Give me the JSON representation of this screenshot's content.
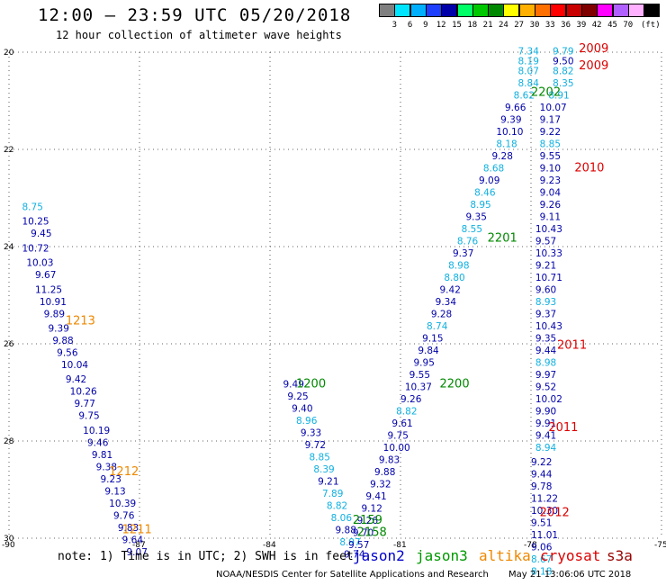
{
  "header": {
    "title": "12:00 – 23:59 UTC 05/20/2018",
    "subtitle": "12 hour collection of altimeter wave heights"
  },
  "color_scale": {
    "unit": "(ft)",
    "colors": [
      "#7f7f7f",
      "#00e5ff",
      "#00b0ff",
      "#1f3fff",
      "#0000a8",
      "#00ff66",
      "#00c800",
      "#008800",
      "#ffff00",
      "#ffb000",
      "#ff7000",
      "#ff0000",
      "#c80000",
      "#800000",
      "#ff00ff",
      "#b060ff",
      "#ffb0ff",
      "#000000"
    ],
    "labels": [
      "3",
      "6",
      "9",
      "12",
      "15",
      "18",
      "21",
      "24",
      "27",
      "30",
      "33",
      "36",
      "39",
      "42",
      "45",
      "70"
    ]
  },
  "axes": {
    "lat_labels": [
      "20",
      "22",
      "24",
      "26",
      "28",
      "30"
    ],
    "lon_labels": [
      "-90",
      "-87",
      "-84",
      "-81",
      "-78",
      "-75"
    ]
  },
  "map": {
    "lon_range": [
      -90,
      -75
    ],
    "lat_range": [
      20,
      30
    ],
    "colors": {
      "jason2": "#0000aa",
      "jason2_light": "#10b0e0",
      "jason3": "#008800",
      "altika": "#ee8800",
      "cryosat": "#dd0000"
    },
    "pass_labels": [
      {
        "text": "1213",
        "sat": "altika",
        "lon": -88.7,
        "lat": 25.6
      },
      {
        "text": "1212",
        "sat": "altika",
        "lon": -87.7,
        "lat": 28.7
      },
      {
        "text": "1211",
        "sat": "altika",
        "lon": -87.4,
        "lat": 29.9
      },
      {
        "text": "1200",
        "sat": "jason3",
        "lon": -83.4,
        "lat": 26.9
      },
      {
        "text": "2200",
        "sat": "jason3",
        "lon": -80.1,
        "lat": 26.9
      },
      {
        "text": "2201",
        "sat": "jason3",
        "lon": -79.0,
        "lat": 23.9
      },
      {
        "text": "2202",
        "sat": "jason3",
        "lon": -78.0,
        "lat": 20.9
      },
      {
        "text": "2159",
        "sat": "jason3",
        "lon": -82.1,
        "lat": 29.7
      },
      {
        "text": "2158",
        "sat": "jason3",
        "lon": -82.0,
        "lat": 29.95
      },
      {
        "text": "2009",
        "sat": "cryosat",
        "lon": -76.9,
        "lat": 20.0
      },
      {
        "text": "2009",
        "sat": "cryosat",
        "lon": -76.9,
        "lat": 20.35
      },
      {
        "text": "2010",
        "sat": "cryosat",
        "lon": -77.0,
        "lat": 22.45
      },
      {
        "text": "2011",
        "sat": "cryosat",
        "lon": -77.4,
        "lat": 26.1
      },
      {
        "text": "2011",
        "sat": "cryosat",
        "lon": -77.6,
        "lat": 27.8
      },
      {
        "text": "2012",
        "sat": "cryosat",
        "lon": -77.8,
        "lat": 29.55
      }
    ],
    "tracks": [
      {
        "name": "altika-west",
        "values": [
          {
            "v": "8.75",
            "lon": -89.7,
            "lat": 23.25,
            "c": "l"
          },
          {
            "v": "10.25",
            "lon": -89.7,
            "lat": 23.55,
            "c": "d"
          },
          {
            "v": "9.45",
            "lon": -89.5,
            "lat": 23.8,
            "c": "d"
          },
          {
            "v": "10.72",
            "lon": -89.7,
            "lat": 24.1,
            "c": "d"
          },
          {
            "v": "10.03",
            "lon": -89.6,
            "lat": 24.4,
            "c": "d"
          },
          {
            "v": "9.67",
            "lon": -89.4,
            "lat": 24.65,
            "c": "d"
          },
          {
            "v": "11.25",
            "lon": -89.4,
            "lat": 24.95,
            "c": "d"
          },
          {
            "v": "10.91",
            "lon": -89.3,
            "lat": 25.2,
            "c": "d"
          },
          {
            "v": "9.89",
            "lon": -89.2,
            "lat": 25.45,
            "c": "d"
          },
          {
            "v": "9.39",
            "lon": -89.1,
            "lat": 25.75,
            "c": "d"
          },
          {
            "v": "9.88",
            "lon": -89.0,
            "lat": 26.0,
            "c": "d"
          },
          {
            "v": "9.56",
            "lon": -88.9,
            "lat": 26.25,
            "c": "d"
          },
          {
            "v": "10.04",
            "lon": -88.8,
            "lat": 26.5,
            "c": "d"
          },
          {
            "v": "9.42",
            "lon": -88.7,
            "lat": 26.8,
            "c": "d"
          },
          {
            "v": "10.26",
            "lon": -88.6,
            "lat": 27.05,
            "c": "d"
          },
          {
            "v": "9.77",
            "lon": -88.5,
            "lat": 27.3,
            "c": "d"
          },
          {
            "v": "9.75",
            "lon": -88.4,
            "lat": 27.55,
            "c": "d"
          },
          {
            "v": "10.19",
            "lon": -88.3,
            "lat": 27.85,
            "c": "d"
          },
          {
            "v": "9.46",
            "lon": -88.2,
            "lat": 28.1,
            "c": "d"
          },
          {
            "v": "9.81",
            "lon": -88.1,
            "lat": 28.35,
            "c": "d"
          },
          {
            "v": "9.38",
            "lon": -88.0,
            "lat": 28.6,
            "c": "d"
          },
          {
            "v": "9.23",
            "lon": -87.9,
            "lat": 28.85,
            "c": "d"
          },
          {
            "v": "9.13",
            "lon": -87.8,
            "lat": 29.1,
            "c": "d"
          },
          {
            "v": "10.39",
            "lon": -87.7,
            "lat": 29.35,
            "c": "d"
          },
          {
            "v": "9.76",
            "lon": -87.6,
            "lat": 29.6,
            "c": "d"
          },
          {
            "v": "9.83",
            "lon": -87.5,
            "lat": 29.85,
            "c": "d"
          },
          {
            "v": "9.64",
            "lon": -87.4,
            "lat": 30.1,
            "c": "d"
          },
          {
            "v": "9.07",
            "lon": -87.3,
            "lat": 30.35,
            "c": "d"
          }
        ]
      },
      {
        "name": "jason-center-left",
        "values": [
          {
            "v": "9.49",
            "lon": -83.7,
            "lat": 26.9,
            "c": "d"
          },
          {
            "v": "9.25",
            "lon": -83.6,
            "lat": 27.15,
            "c": "d"
          },
          {
            "v": "9.40",
            "lon": -83.5,
            "lat": 27.4,
            "c": "d"
          },
          {
            "v": "8.96",
            "lon": -83.4,
            "lat": 27.65,
            "c": "l"
          },
          {
            "v": "9.33",
            "lon": -83.3,
            "lat": 27.9,
            "c": "d"
          },
          {
            "v": "9.72",
            "lon": -83.2,
            "lat": 28.15,
            "c": "d"
          },
          {
            "v": "8.85",
            "lon": -83.1,
            "lat": 28.4,
            "c": "l"
          },
          {
            "v": "8.39",
            "lon": -83.0,
            "lat": 28.65,
            "c": "l"
          },
          {
            "v": "9.21",
            "lon": -82.9,
            "lat": 28.9,
            "c": "d"
          },
          {
            "v": "7.89",
            "lon": -82.8,
            "lat": 29.15,
            "c": "l"
          },
          {
            "v": "8.82",
            "lon": -82.7,
            "lat": 29.4,
            "c": "l"
          },
          {
            "v": "8.06",
            "lon": -82.6,
            "lat": 29.65,
            "c": "l"
          },
          {
            "v": "9.88",
            "lon": -82.5,
            "lat": 29.9,
            "c": "d"
          },
          {
            "v": "8.97",
            "lon": -82.4,
            "lat": 30.15,
            "c": "l"
          },
          {
            "v": "9.74",
            "lon": -82.3,
            "lat": 30.4,
            "c": "d"
          }
        ]
      },
      {
        "name": "jason-diagonal",
        "values": [
          {
            "v": "7.34",
            "lon": -78.3,
            "lat": 20.05,
            "c": "l"
          },
          {
            "v": "8.19",
            "lon": -78.3,
            "lat": 20.25,
            "c": "l"
          },
          {
            "v": "8.07",
            "lon": -78.3,
            "lat": 20.45,
            "c": "l"
          },
          {
            "v": "8.84",
            "lon": -78.3,
            "lat": 20.7,
            "c": "l"
          },
          {
            "v": "8.62",
            "lon": -78.4,
            "lat": 20.95,
            "c": "l"
          },
          {
            "v": "9.66",
            "lon": -78.6,
            "lat": 21.2,
            "c": "d"
          },
          {
            "v": "9.39",
            "lon": -78.7,
            "lat": 21.45,
            "c": "d"
          },
          {
            "v": "10.10",
            "lon": -78.8,
            "lat": 21.7,
            "c": "d"
          },
          {
            "v": "8.18",
            "lon": -78.8,
            "lat": 21.95,
            "c": "l"
          },
          {
            "v": "9.28",
            "lon": -78.9,
            "lat": 22.2,
            "c": "d"
          },
          {
            "v": "8.68",
            "lon": -79.1,
            "lat": 22.45,
            "c": "l"
          },
          {
            "v": "9.09",
            "lon": -79.2,
            "lat": 22.7,
            "c": "d"
          },
          {
            "v": "8.46",
            "lon": -79.3,
            "lat": 22.95,
            "c": "l"
          },
          {
            "v": "8.95",
            "lon": -79.4,
            "lat": 23.2,
            "c": "l"
          },
          {
            "v": "9.35",
            "lon": -79.5,
            "lat": 23.45,
            "c": "d"
          },
          {
            "v": "8.55",
            "lon": -79.6,
            "lat": 23.7,
            "c": "l"
          },
          {
            "v": "8.76",
            "lon": -79.7,
            "lat": 23.95,
            "c": "l"
          },
          {
            "v": "9.37",
            "lon": -79.8,
            "lat": 24.2,
            "c": "d"
          },
          {
            "v": "8.98",
            "lon": -79.9,
            "lat": 24.45,
            "c": "l"
          },
          {
            "v": "8.80",
            "lon": -80.0,
            "lat": 24.7,
            "c": "l"
          },
          {
            "v": "9.42",
            "lon": -80.1,
            "lat": 24.95,
            "c": "d"
          },
          {
            "v": "9.34",
            "lon": -80.2,
            "lat": 25.2,
            "c": "d"
          },
          {
            "v": "9.28",
            "lon": -80.3,
            "lat": 25.45,
            "c": "d"
          },
          {
            "v": "8.74",
            "lon": -80.4,
            "lat": 25.7,
            "c": "l"
          },
          {
            "v": "9.15",
            "lon": -80.5,
            "lat": 25.95,
            "c": "d"
          },
          {
            "v": "9.84",
            "lon": -80.6,
            "lat": 26.2,
            "c": "d"
          },
          {
            "v": "9.95",
            "lon": -80.7,
            "lat": 26.45,
            "c": "d"
          },
          {
            "v": "9.55",
            "lon": -80.8,
            "lat": 26.7,
            "c": "d"
          },
          {
            "v": "10.37",
            "lon": -80.9,
            "lat": 26.95,
            "c": "d"
          },
          {
            "v": "9.26",
            "lon": -81.0,
            "lat": 27.2,
            "c": "d"
          },
          {
            "v": "8.82",
            "lon": -81.1,
            "lat": 27.45,
            "c": "l"
          },
          {
            "v": "9.61",
            "lon": -81.2,
            "lat": 27.7,
            "c": "d"
          },
          {
            "v": "9.75",
            "lon": -81.3,
            "lat": 27.95,
            "c": "d"
          },
          {
            "v": "10.00",
            "lon": -81.4,
            "lat": 28.2,
            "c": "d"
          },
          {
            "v": "9.83",
            "lon": -81.5,
            "lat": 28.45,
            "c": "d"
          },
          {
            "v": "9.88",
            "lon": -81.6,
            "lat": 28.7,
            "c": "d"
          },
          {
            "v": "9.32",
            "lon": -81.7,
            "lat": 28.95,
            "c": "d"
          },
          {
            "v": "9.41",
            "lon": -81.8,
            "lat": 29.2,
            "c": "d"
          },
          {
            "v": "9.12",
            "lon": -81.9,
            "lat": 29.45,
            "c": "d"
          },
          {
            "v": "9.26",
            "lon": -82.0,
            "lat": 29.7,
            "c": "d"
          },
          {
            "v": "9.70",
            "lon": -82.1,
            "lat": 29.95,
            "c": "d"
          },
          {
            "v": "9.57",
            "lon": -82.2,
            "lat": 30.2,
            "c": "d"
          }
        ]
      },
      {
        "name": "cryosat-column",
        "values": [
          {
            "v": "9.79",
            "lon": -77.5,
            "lat": 20.05,
            "c": "l"
          },
          {
            "v": "9.50",
            "lon": -77.5,
            "lat": 20.25,
            "c": "d"
          },
          {
            "v": "8.82",
            "lon": -77.5,
            "lat": 20.45,
            "c": "l"
          },
          {
            "v": "8.35",
            "lon": -77.5,
            "lat": 20.7,
            "c": "l"
          },
          {
            "v": "8.91",
            "lon": -77.6,
            "lat": 20.95,
            "c": "l"
          },
          {
            "v": "10.07",
            "lon": -77.8,
            "lat": 21.2,
            "c": "d"
          },
          {
            "v": "9.17",
            "lon": -77.8,
            "lat": 21.45,
            "c": "d"
          },
          {
            "v": "9.22",
            "lon": -77.8,
            "lat": 21.7,
            "c": "d"
          },
          {
            "v": "8.85",
            "lon": -77.8,
            "lat": 21.95,
            "c": "l"
          },
          {
            "v": "9.55",
            "lon": -77.8,
            "lat": 22.2,
            "c": "d"
          },
          {
            "v": "9.10",
            "lon": -77.8,
            "lat": 22.45,
            "c": "d"
          },
          {
            "v": "9.23",
            "lon": -77.8,
            "lat": 22.7,
            "c": "d"
          },
          {
            "v": "9.04",
            "lon": -77.8,
            "lat": 22.95,
            "c": "d"
          },
          {
            "v": "9.26",
            "lon": -77.8,
            "lat": 23.2,
            "c": "d"
          },
          {
            "v": "9.11",
            "lon": -77.8,
            "lat": 23.45,
            "c": "d"
          },
          {
            "v": "10.43",
            "lon": -77.9,
            "lat": 23.7,
            "c": "d"
          },
          {
            "v": "9.57",
            "lon": -77.9,
            "lat": 23.95,
            "c": "d"
          },
          {
            "v": "10.33",
            "lon": -77.9,
            "lat": 24.2,
            "c": "d"
          },
          {
            "v": "9.21",
            "lon": -77.9,
            "lat": 24.45,
            "c": "d"
          },
          {
            "v": "10.71",
            "lon": -77.9,
            "lat": 24.7,
            "c": "d"
          },
          {
            "v": "9.60",
            "lon": -77.9,
            "lat": 24.95,
            "c": "d"
          },
          {
            "v": "8.93",
            "lon": -77.9,
            "lat": 25.2,
            "c": "l"
          },
          {
            "v": "9.37",
            "lon": -77.9,
            "lat": 25.45,
            "c": "d"
          },
          {
            "v": "10.43",
            "lon": -77.9,
            "lat": 25.7,
            "c": "d"
          },
          {
            "v": "9.35",
            "lon": -77.9,
            "lat": 25.95,
            "c": "d"
          },
          {
            "v": "9.44",
            "lon": -77.9,
            "lat": 26.2,
            "c": "d"
          },
          {
            "v": "8.98",
            "lon": -77.9,
            "lat": 26.45,
            "c": "l"
          },
          {
            "v": "9.97",
            "lon": -77.9,
            "lat": 26.7,
            "c": "d"
          },
          {
            "v": "9.52",
            "lon": -77.9,
            "lat": 26.95,
            "c": "d"
          },
          {
            "v": "10.02",
            "lon": -77.9,
            "lat": 27.2,
            "c": "d"
          },
          {
            "v": "9.90",
            "lon": -77.9,
            "lat": 27.45,
            "c": "d"
          },
          {
            "v": "9.91",
            "lon": -77.9,
            "lat": 27.7,
            "c": "d"
          },
          {
            "v": "9.41",
            "lon": -77.9,
            "lat": 27.95,
            "c": "d"
          },
          {
            "v": "8.94",
            "lon": -77.9,
            "lat": 28.2,
            "c": "l"
          },
          {
            "v": "9.22",
            "lon": -78.0,
            "lat": 28.5,
            "c": "d"
          },
          {
            "v": "9.44",
            "lon": -78.0,
            "lat": 28.75,
            "c": "d"
          },
          {
            "v": "9.78",
            "lon": -78.0,
            "lat": 29.0,
            "c": "d"
          },
          {
            "v": "11.22",
            "lon": -78.0,
            "lat": 29.25,
            "c": "d"
          },
          {
            "v": "10.30",
            "lon": -78.0,
            "lat": 29.5,
            "c": "d"
          },
          {
            "v": "9.51",
            "lon": -78.0,
            "lat": 29.75,
            "c": "d"
          },
          {
            "v": "11.01",
            "lon": -78.0,
            "lat": 30.0,
            "c": "d"
          },
          {
            "v": "9.06",
            "lon": -78.0,
            "lat": 30.25,
            "c": "d"
          },
          {
            "v": "8.67",
            "lon": -78.0,
            "lat": 30.5,
            "c": "l"
          },
          {
            "v": "8.18",
            "lon": -78.0,
            "lat": 30.75,
            "c": "l"
          }
        ]
      }
    ]
  },
  "footer": {
    "note": "note: 1) Time is in UTC; 2) SWH is in feet",
    "legend": [
      {
        "name": "jason2",
        "color": "#0000cc"
      },
      {
        "name": "jason3",
        "color": "#009900"
      },
      {
        "name": "altika",
        "color": "#ee8800"
      },
      {
        "name": "cryosat",
        "color": "#dd0000"
      },
      {
        "name": "s3a",
        "color": "#990000"
      }
    ],
    "credit": "NOAA/NESDIS Center for Satellite Applications and Research",
    "timestamp": "May 21 13:06:06 UTC 2018"
  }
}
